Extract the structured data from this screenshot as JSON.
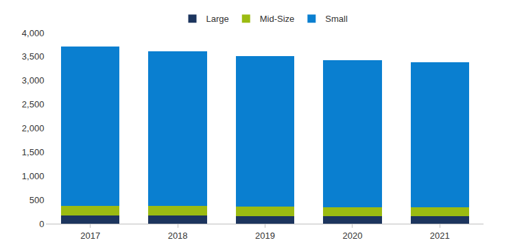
{
  "chart_data": {
    "type": "bar",
    "stacked": true,
    "grid": false,
    "legend": "top",
    "categories": [
      "2017",
      "2018",
      "2019",
      "2020",
      "2021"
    ],
    "series": [
      {
        "name": "Large",
        "color": "#1c355e",
        "values": [
          170,
          165,
          160,
          155,
          155
        ]
      },
      {
        "name": "Mid-Size",
        "color": "#9bbb12",
        "values": [
          200,
          205,
          205,
          195,
          185
        ]
      },
      {
        "name": "Small",
        "color": "#0a7fd0",
        "values": [
          3350,
          3240,
          3145,
          3080,
          3050
        ]
      }
    ],
    "ylim": [
      0,
      4000
    ],
    "yticks": [
      0,
      500,
      {
        "value": 1000,
        "label": "1,000"
      },
      {
        "value": 1500,
        "label": "1,500"
      },
      {
        "value": 2000,
        "label": "2,000"
      },
      {
        "value": 2500,
        "label": "2,500"
      },
      {
        "value": 3000,
        "label": "3,000"
      },
      {
        "value": 3500,
        "label": "3,500"
      },
      {
        "value": 4000,
        "label": "4,000"
      }
    ]
  }
}
